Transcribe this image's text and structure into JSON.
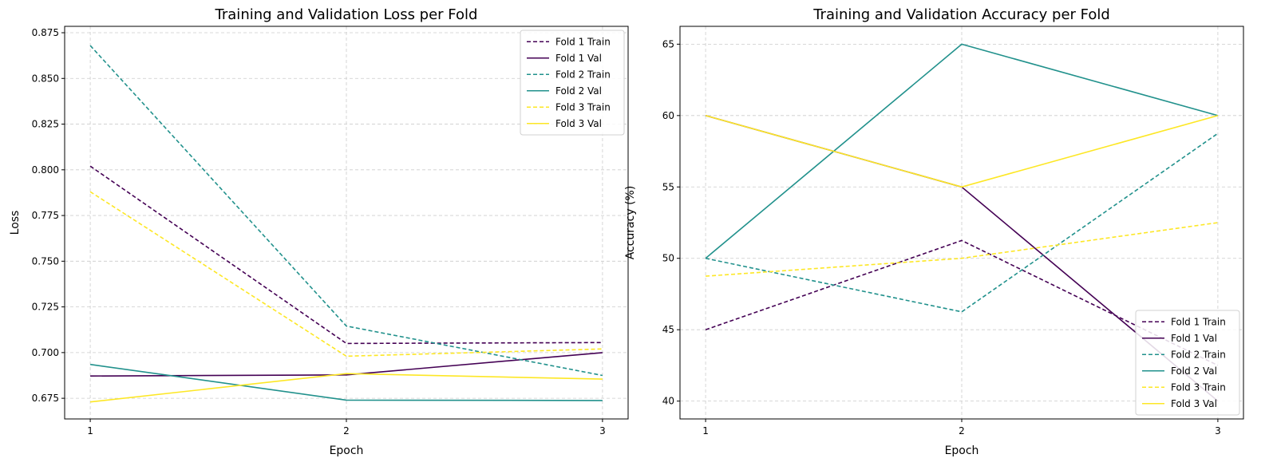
{
  "chart_data": [
    {
      "type": "line",
      "title": "Training and Validation Loss per Fold",
      "xlabel": "Epoch",
      "ylabel": "Loss",
      "x": [
        1,
        2,
        3
      ],
      "xticks": [
        1,
        2,
        3
      ],
      "yticks": [
        0.675,
        0.7,
        0.725,
        0.75,
        0.775,
        0.8,
        0.825,
        0.85,
        0.875
      ],
      "ytick_labels": [
        "0.675",
        "0.700",
        "0.725",
        "0.750",
        "0.775",
        "0.800",
        "0.825",
        "0.850",
        "0.875"
      ],
      "ylim": [
        0.6637,
        0.8785
      ],
      "grid": true,
      "legend_position": "upper right",
      "series": [
        {
          "name": "Fold 1 Train",
          "values": [
            0.802,
            0.705,
            0.7055
          ],
          "color": "#440154",
          "dash": "dashed"
        },
        {
          "name": "Fold 1 Val",
          "values": [
            0.6872,
            0.6878,
            0.7
          ],
          "color": "#440154",
          "dash": "solid"
        },
        {
          "name": "Fold 2 Train",
          "values": [
            0.868,
            0.7145,
            0.6875
          ],
          "color": "#21918c",
          "dash": "dashed"
        },
        {
          "name": "Fold 2 Val",
          "values": [
            0.6935,
            0.674,
            0.6738
          ],
          "color": "#21918c",
          "dash": "solid"
        },
        {
          "name": "Fold 3 Train",
          "values": [
            0.788,
            0.698,
            0.702
          ],
          "color": "#fde725",
          "dash": "dashed"
        },
        {
          "name": "Fold 3 Val",
          "values": [
            0.673,
            0.6885,
            0.6855
          ],
          "color": "#fde725",
          "dash": "solid"
        }
      ]
    },
    {
      "type": "line",
      "title": "Training and Validation Accuracy per Fold",
      "xlabel": "Epoch",
      "ylabel": "Accuracy (%)",
      "x": [
        1,
        2,
        3
      ],
      "xticks": [
        1,
        2,
        3
      ],
      "yticks": [
        40,
        45,
        50,
        55,
        60,
        65
      ],
      "ytick_labels": [
        "40",
        "45",
        "50",
        "55",
        "60",
        "65"
      ],
      "ylim": [
        38.75,
        66.25
      ],
      "grid": true,
      "legend_position": "lower right",
      "series": [
        {
          "name": "Fold 1 Train",
          "values": [
            45,
            51.25,
            42.5
          ],
          "color": "#440154",
          "dash": "dashed"
        },
        {
          "name": "Fold 1 Val",
          "values": [
            60,
            55,
            40
          ],
          "color": "#440154",
          "dash": "solid"
        },
        {
          "name": "Fold 2 Train",
          "values": [
            50,
            46.25,
            58.75
          ],
          "color": "#21918c",
          "dash": "dashed"
        },
        {
          "name": "Fold 2 Val",
          "values": [
            50,
            65,
            60
          ],
          "color": "#21918c",
          "dash": "solid"
        },
        {
          "name": "Fold 3 Train",
          "values": [
            48.75,
            50,
            52.5
          ],
          "color": "#fde725",
          "dash": "dashed"
        },
        {
          "name": "Fold 3 Val",
          "values": [
            60,
            55,
            60
          ],
          "color": "#fde725",
          "dash": "solid"
        }
      ]
    }
  ]
}
